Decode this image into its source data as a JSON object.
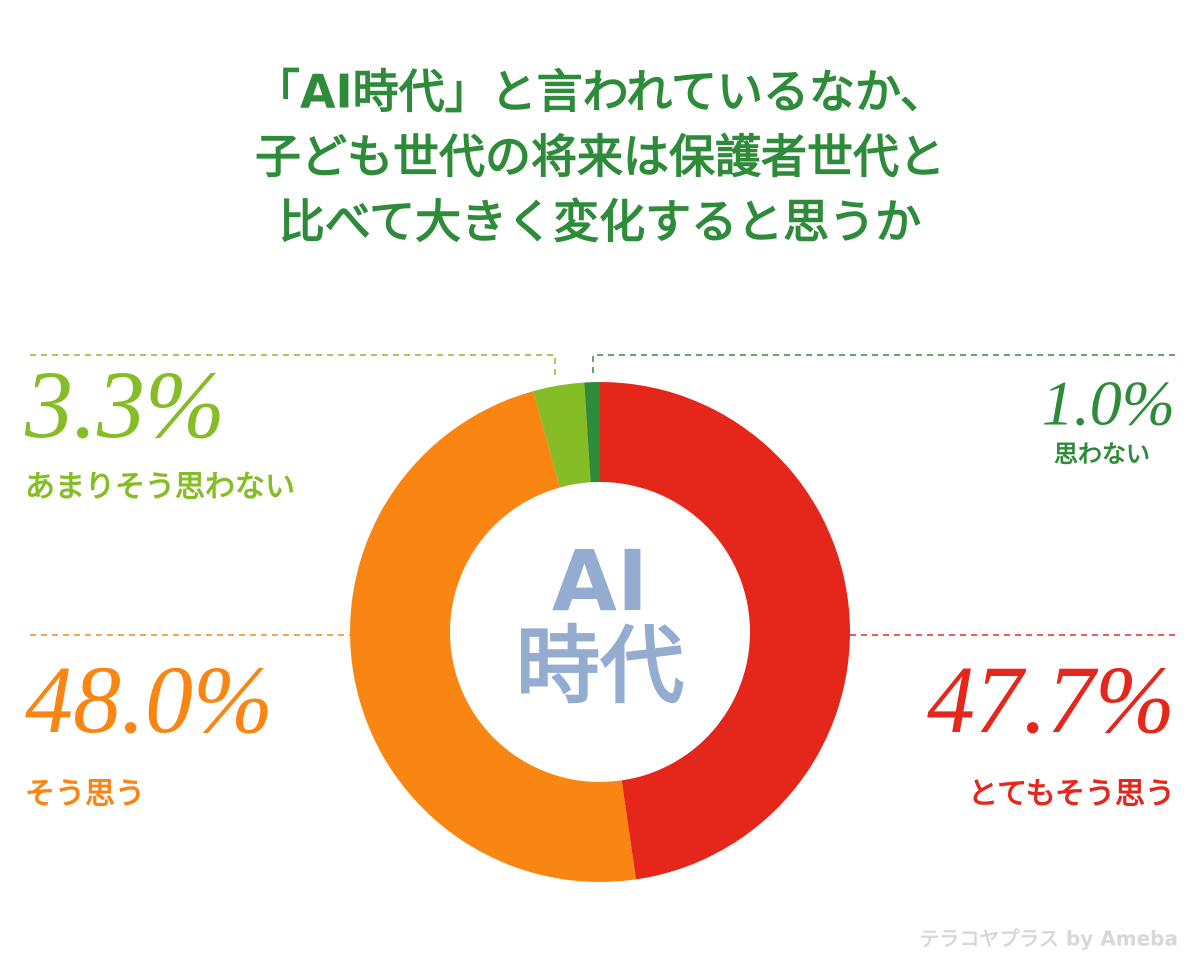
{
  "chart_data": {
    "type": "donut",
    "title": [
      "「AI時代」と言われているなか、",
      "子ども世代の将来は保護者世代と",
      "比べて大きく変化すると思うか"
    ],
    "categories": [
      "とてもそう思う",
      "そう思う",
      "あまりそう思わない",
      "思わない"
    ],
    "values": [
      47.7,
      48.0,
      3.3,
      1.0
    ],
    "value_labels": [
      "47.7%",
      "48.0%",
      "3.3%",
      "1.0%"
    ],
    "colors": [
      "#e5261a",
      "#f98613",
      "#86bc25",
      "#2e8b3a"
    ],
    "center_text": [
      "AI",
      "時代"
    ],
    "watermark": "テラコヤプラス by Ameba"
  }
}
